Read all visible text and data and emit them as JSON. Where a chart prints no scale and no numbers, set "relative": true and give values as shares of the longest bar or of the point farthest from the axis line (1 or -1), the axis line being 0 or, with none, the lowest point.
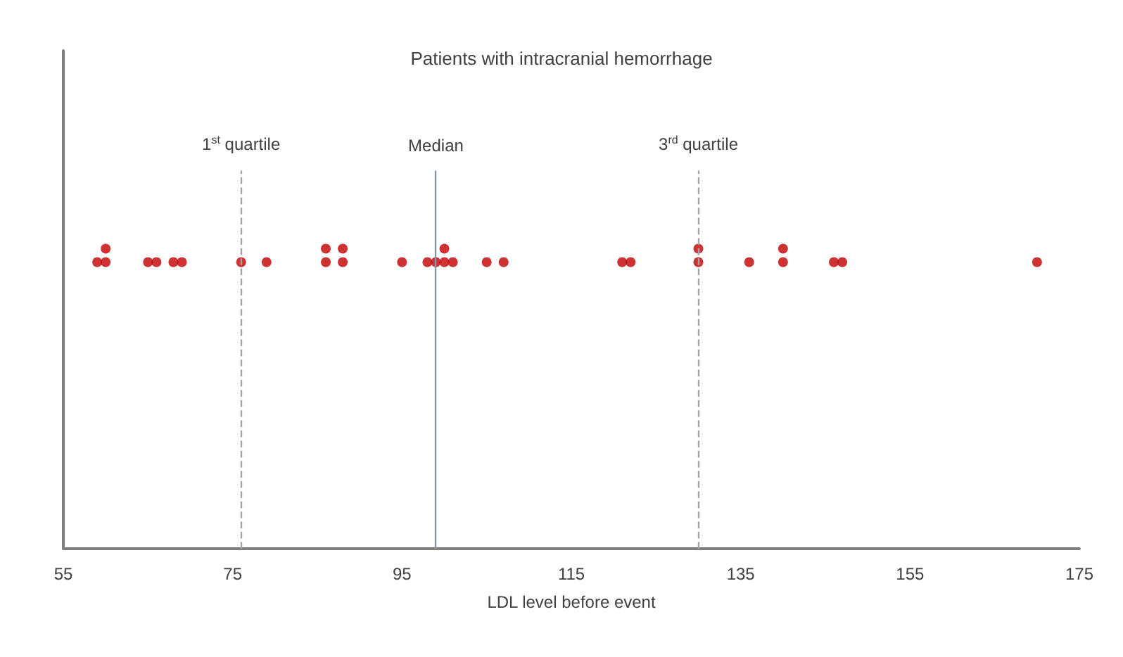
{
  "chart_data": {
    "type": "scatter",
    "title": "Patients with intracranial hemorrhage",
    "xlabel": "LDL level before event",
    "relative": true,
    "marker": "circle",
    "grid": false,
    "xlim": [
      55,
      175
    ],
    "xticks": [
      55,
      75,
      95,
      115,
      135,
      155,
      175
    ],
    "series": [
      {
        "color": "#c00000",
        "x": [
          59,
          60,
          65,
          66,
          68,
          69,
          76,
          79,
          86,
          88,
          95,
          98,
          99,
          100,
          101,
          105,
          107,
          121,
          122,
          130,
          136,
          140,
          146,
          147,
          170,
          60,
          86,
          88,
          100,
          130,
          140
        ],
        "values": [
          0.955,
          0.955,
          0.955,
          0.955,
          0.955,
          0.955,
          0.955,
          0.955,
          0.955,
          0.955,
          0.955,
          0.955,
          0.955,
          0.955,
          0.955,
          0.955,
          0.955,
          0.955,
          0.955,
          0.955,
          0.955,
          0.955,
          0.955,
          0.955,
          0.955,
          1,
          1,
          1,
          1,
          1,
          1
        ]
      }
    ],
    "ref_lines": [
      {
        "axis": "x",
        "value": 76,
        "label": "1$^{st}$ quartile",
        "color": "#a6a6a6",
        "line_style": "dashed"
      },
      {
        "axis": "x",
        "value": 99,
        "label": "Median",
        "color": "#8496b0",
        "line_style": "solid"
      },
      {
        "axis": "x",
        "value": 130,
        "label": "3$^{rd}$ quartile",
        "color": "#a6a6a6",
        "line_style": "dashed"
      }
    ]
  }
}
